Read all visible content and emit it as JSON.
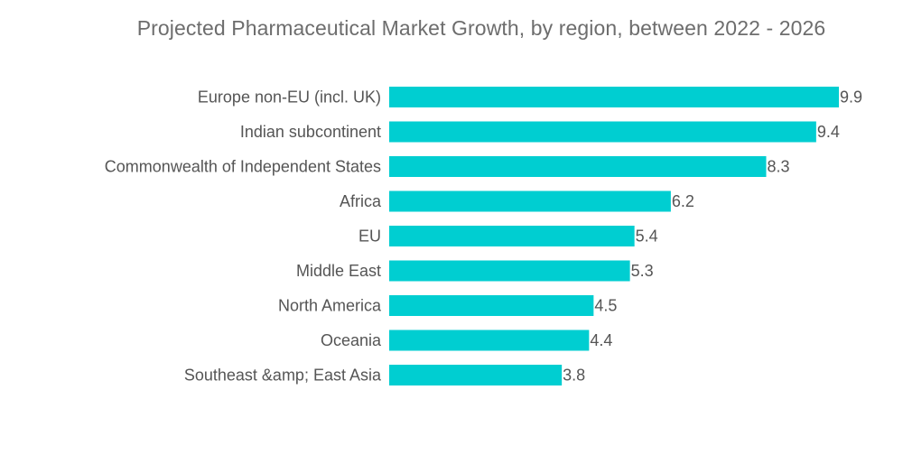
{
  "chart_data": {
    "type": "bar",
    "orientation": "horizontal",
    "title": "Projected Pharmaceutical Market Growth, by region, between 2022 - 2026",
    "categories": [
      "Europe non-EU (incl. UK)",
      "Indian subcontinent",
      "Commonwealth of Independent States",
      "Africa",
      "EU",
      "Middle East",
      "North America",
      "Oceania",
      "Southeast &amp; East Asia"
    ],
    "values": [
      9.9,
      9.4,
      8.3,
      6.2,
      5.4,
      5.3,
      4.5,
      4.4,
      3.8
    ],
    "value_labels": [
      "9.9",
      "9.4",
      "8.3",
      "6.2",
      "5.4",
      "5.3",
      "4.5",
      "4.4",
      "3.8"
    ],
    "xlim": [
      0,
      9.9
    ],
    "grid": false,
    "legend": "none",
    "bar_color": "#00CED1"
  }
}
